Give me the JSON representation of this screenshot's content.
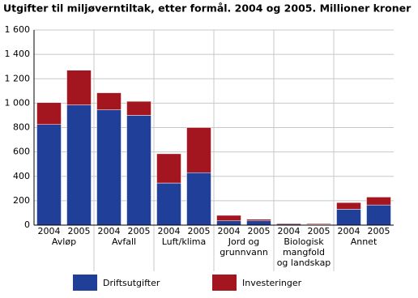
{
  "chart_data": {
    "type": "stacked-bar",
    "title": "Utgifter til miljøverntiltak, etter formål. 2004 og 2005. Millioner kroner",
    "categories": [
      "2004",
      "2005",
      "2004",
      "2005",
      "2004",
      "2005",
      "2004",
      "2005",
      "2004",
      "2005",
      "2004",
      "2005"
    ],
    "groups": [
      [
        "Avløp"
      ],
      [
        "Avfall"
      ],
      [
        "Luft/klima"
      ],
      [
        "Jord og",
        "grunnvann"
      ],
      [
        "Biologisk",
        "mangfold",
        "og landskap"
      ],
      [
        "Annet"
      ]
    ],
    "series": [
      {
        "name": "Driftsutgifter",
        "color": "#1f3f99",
        "values": [
          825,
          985,
          945,
          900,
          345,
          430,
          35,
          35,
          8,
          5,
          130,
          165
        ]
      },
      {
        "name": "Investeringer",
        "color": "#a31620",
        "values": [
          180,
          285,
          140,
          115,
          240,
          370,
          45,
          13,
          7,
          7,
          55,
          65
        ]
      }
    ],
    "ylim": [
      0,
      1600
    ],
    "yticks": [
      0,
      200,
      400,
      600,
      800,
      {
        "value": 1000,
        "label": "1 000"
      },
      {
        "value": 1200,
        "label": "1 200"
      },
      {
        "value": 1400,
        "label": "1 400"
      },
      {
        "value": 1600,
        "label": "1 600"
      }
    ],
    "grid": true
  }
}
